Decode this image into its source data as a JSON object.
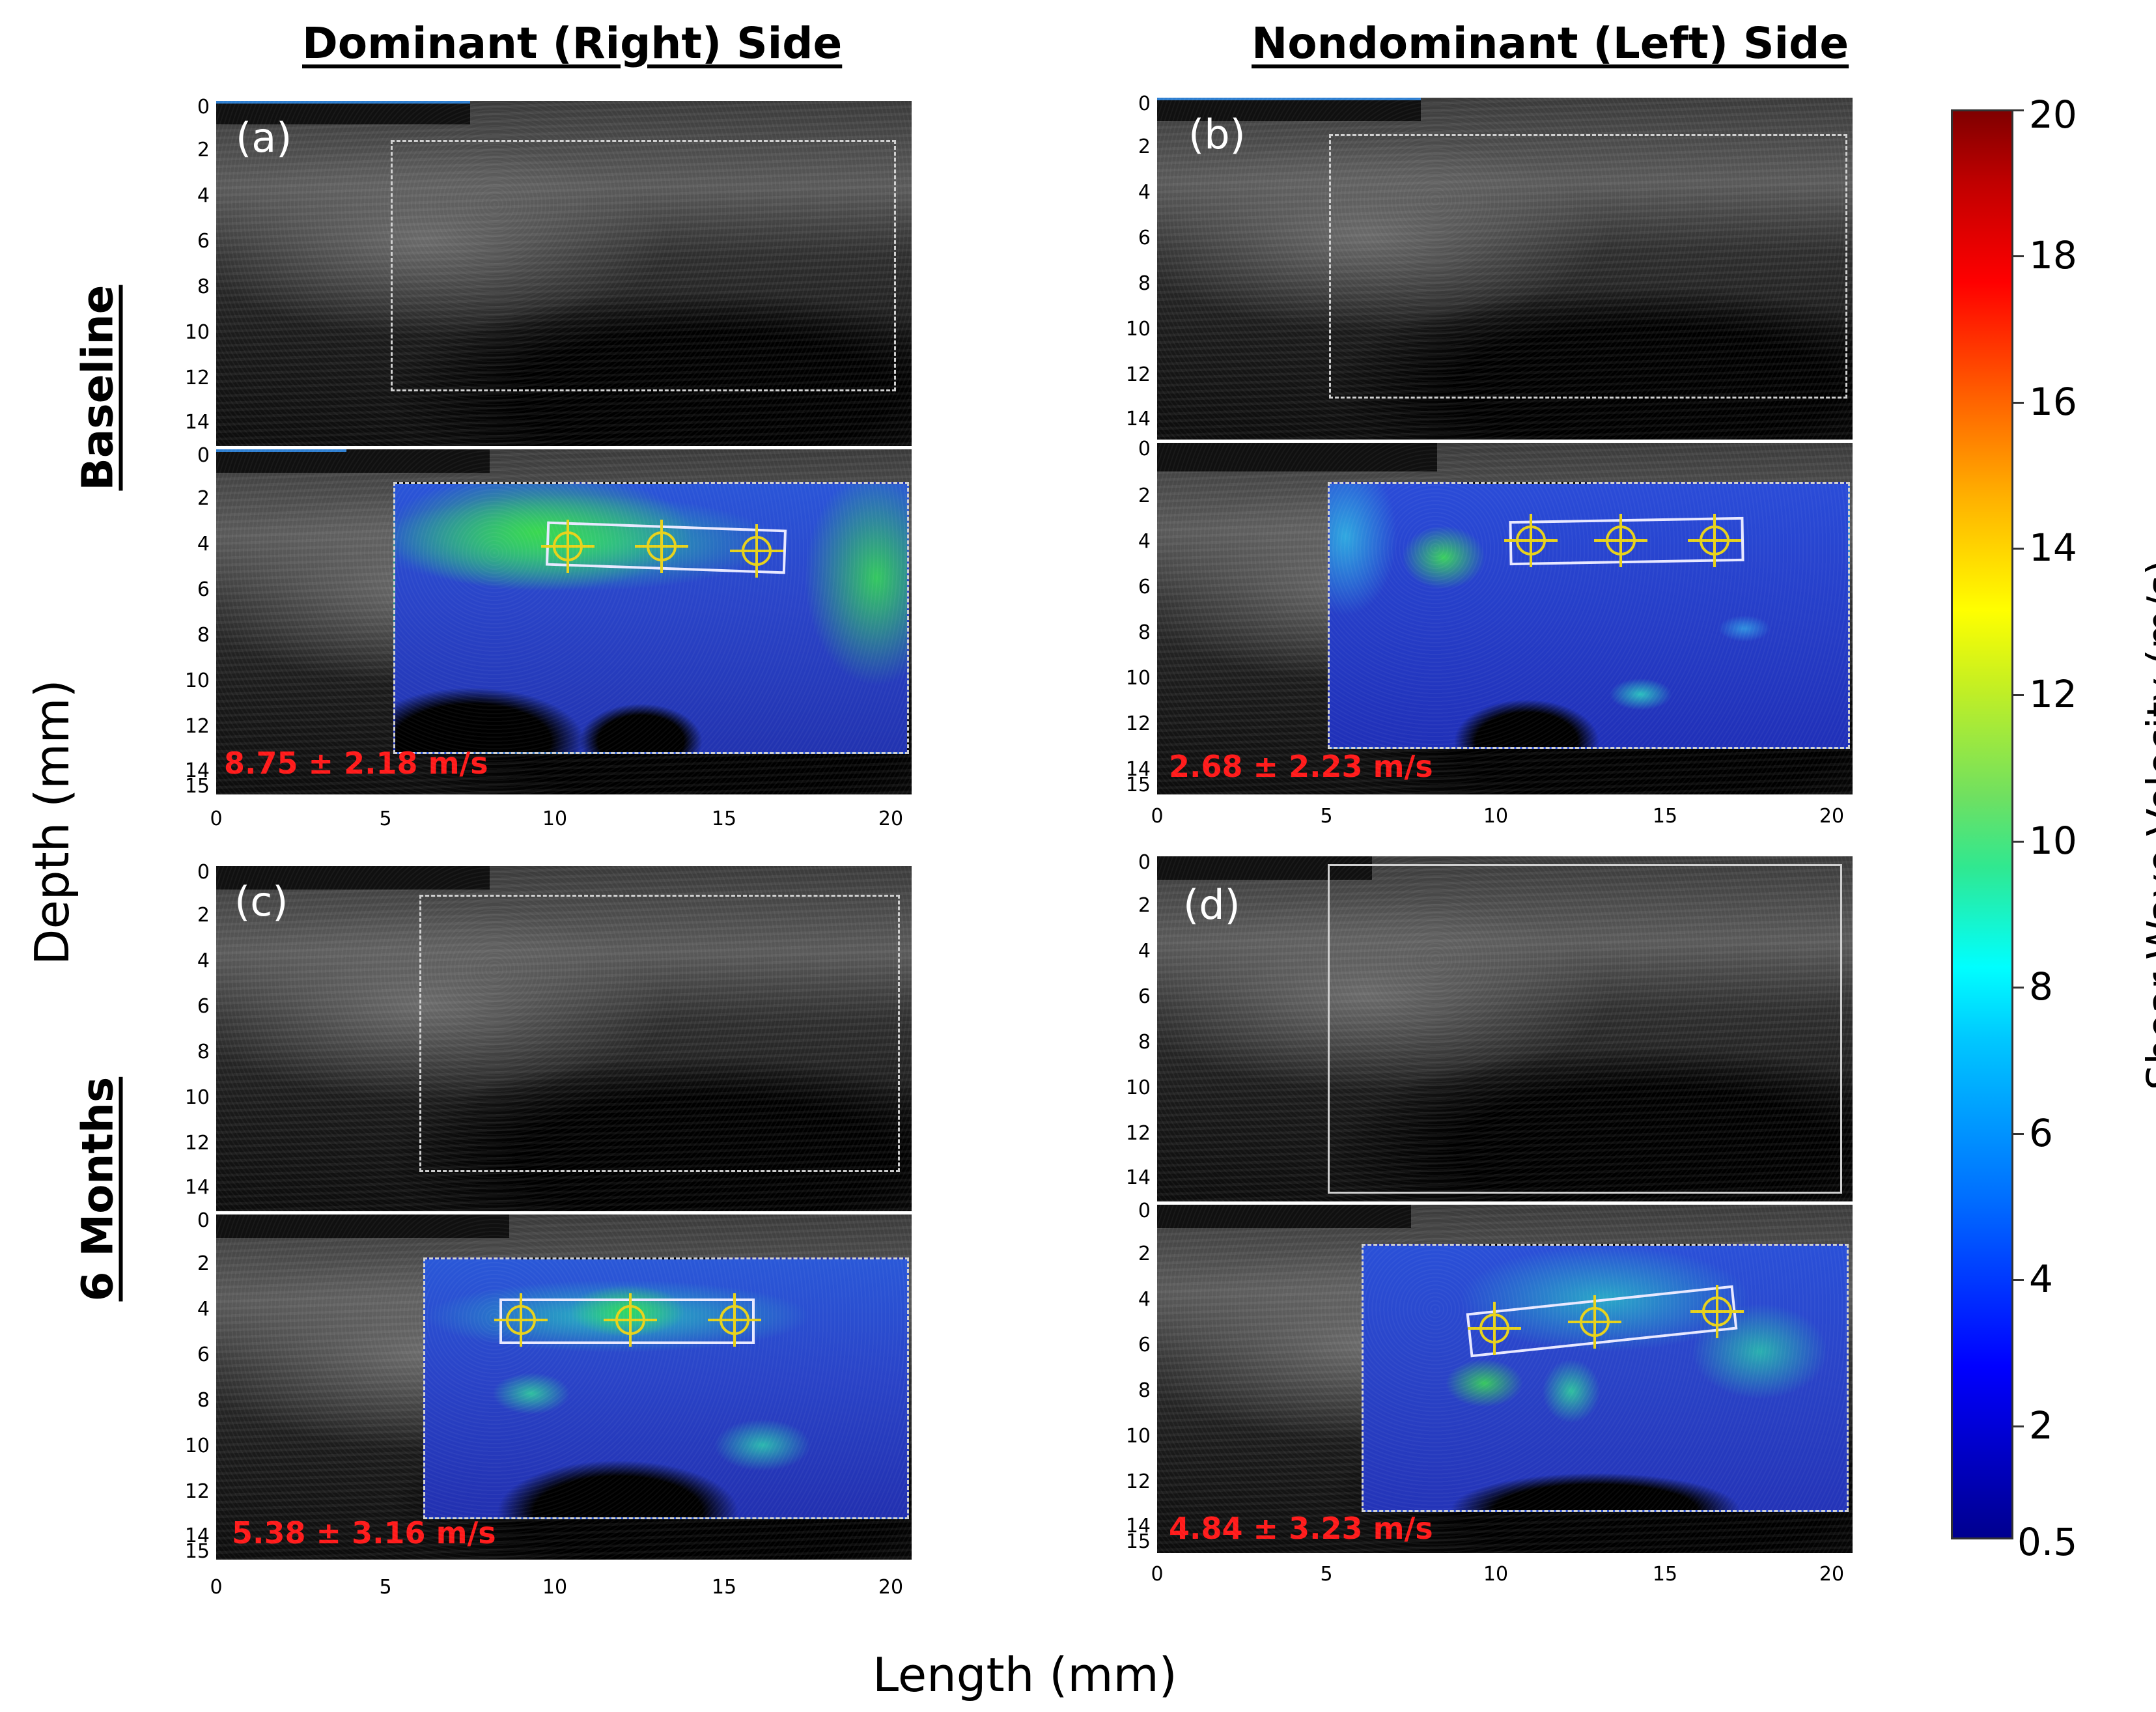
{
  "headers": {
    "dominant": "Dominant (Right) Side",
    "nondominant": "Nondominant (Left) Side"
  },
  "rows": {
    "baseline": "Baseline",
    "six_months": "6 Months"
  },
  "axes": {
    "y_label": "Depth (mm)",
    "x_label": "Length (mm)",
    "y_ticks_bmode": [
      "0",
      "2",
      "4",
      "6",
      "8",
      "10",
      "12",
      "14"
    ],
    "y_ticks_elasto": [
      "0",
      "2",
      "4",
      "6",
      "8",
      "10",
      "12",
      "14",
      "15"
    ],
    "x_ticks": [
      "0",
      "5",
      "10",
      "15",
      "20"
    ]
  },
  "panels": {
    "a": {
      "letter": "(a)",
      "measurement": "8.75 ± 2.18 m/s"
    },
    "b": {
      "letter": "(b)",
      "measurement": "2.68 ± 2.23 m/s"
    },
    "c": {
      "letter": "(c)",
      "measurement": "5.38 ± 3.16 m/s"
    },
    "d": {
      "letter": "(d)",
      "measurement": "4.84 ± 3.23 m/s"
    }
  },
  "colorbar": {
    "label": "Shear Wave Velocity (m/s)",
    "ticks": [
      "20",
      "18",
      "16",
      "14",
      "12",
      "10",
      "8",
      "6",
      "4",
      "2"
    ],
    "min_label": "0.5",
    "min": 0.5,
    "max": 20
  },
  "colors": {
    "measurement_text": "#ff1a1a",
    "roi_outline": "#d0d0d0",
    "marker": "#e8d21a"
  }
}
